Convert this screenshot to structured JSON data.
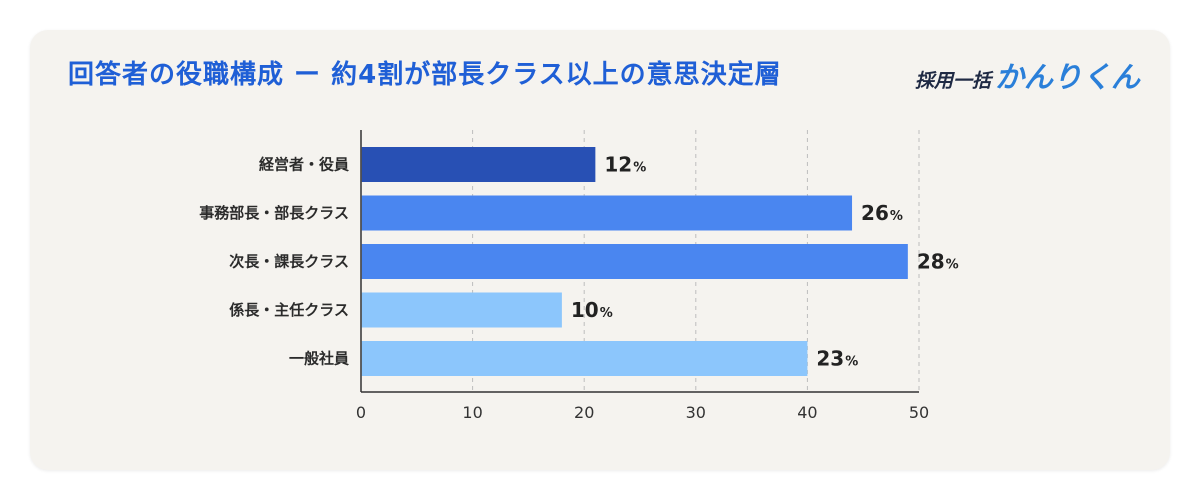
{
  "header": {
    "title": "回答者の役職構成 ー 約4割が部長クラス以上の意思決定層",
    "logo_small": "採用一括",
    "logo_big": "かんりくん"
  },
  "chart_data": {
    "type": "bar",
    "orientation": "horizontal",
    "categories": [
      "経営者・役員",
      "事務部長・部長クラス",
      "次長・課長クラス",
      "係長・主任クラス",
      "一般社員"
    ],
    "values": [
      21,
      44,
      49,
      18,
      40
    ],
    "value_labels": [
      "12",
      "26",
      "28",
      "10",
      "23"
    ],
    "value_unit": "%",
    "colors": [
      "#2850b4",
      "#4a86f0",
      "#4a86f0",
      "#8cc6fc",
      "#8cc6fc"
    ],
    "xlim": [
      0,
      50
    ],
    "xticks": [
      "0",
      "10",
      "20",
      "30",
      "40",
      "50"
    ],
    "grid": "vertical-dashed",
    "title": "回答者の役職構成 ー 約4割が部長クラス以上の意思決定層"
  }
}
